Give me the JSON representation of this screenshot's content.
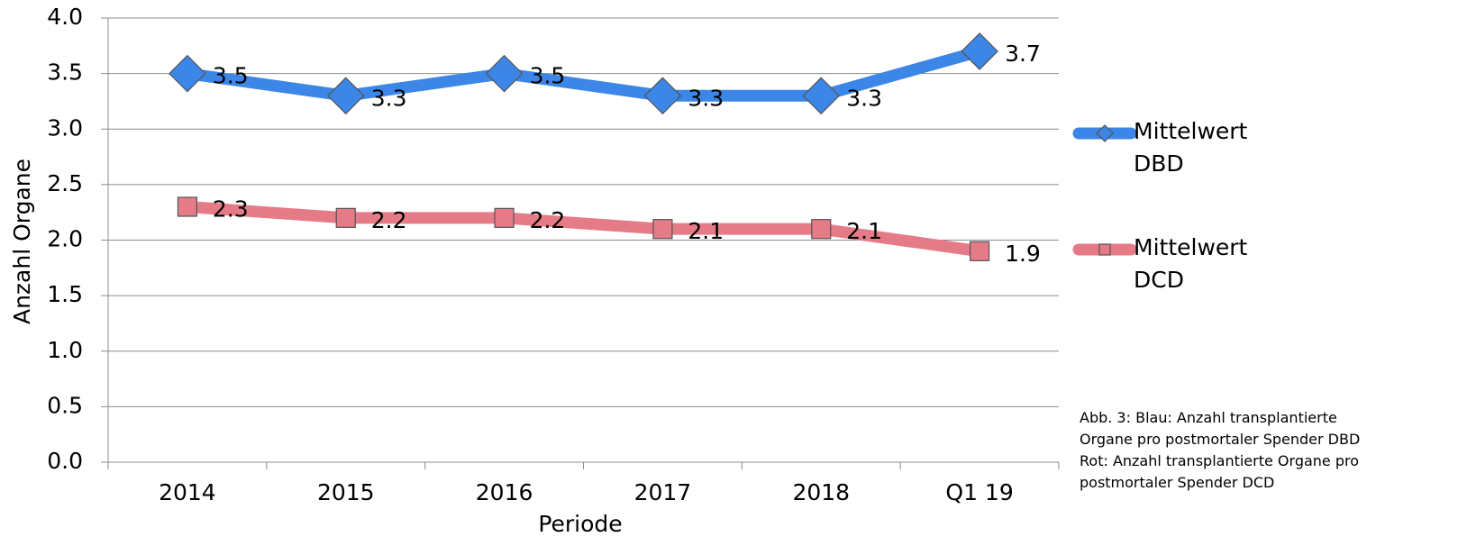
{
  "chart_data": {
    "type": "line",
    "categories": [
      "2014",
      "2015",
      "2016",
      "2017",
      "2018",
      "Q1 19"
    ],
    "series": [
      {
        "name": "Mittelwert DBD",
        "color": "#3b86e6",
        "marker": "diamond",
        "values": [
          3.5,
          3.3,
          3.5,
          3.3,
          3.3,
          3.7
        ]
      },
      {
        "name": "Mittelwert DCD",
        "color": "#e57b86",
        "marker": "square",
        "values": [
          2.3,
          2.2,
          2.2,
          2.1,
          2.1,
          1.9
        ]
      }
    ],
    "ylim": [
      0,
      4
    ],
    "yticks": [
      {
        "value": 0,
        "label": "0.0"
      },
      0.5,
      {
        "value": 1,
        "label": "1.0"
      },
      1.5,
      {
        "value": 2,
        "label": "2.0"
      },
      2.5,
      {
        "value": 3,
        "label": "3.0"
      },
      3.5,
      {
        "value": 4,
        "label": "4.0"
      }
    ],
    "grid": true,
    "xlabel": "Periode",
    "ylabel": "Anzahl Organe",
    "legend": "right",
    "annotation": "Abb. 3: Blau: Anzahl transplantierte Organe pro postmortaler Spender DBD Rot: Anzahl transplantierte Organe pro postmortaler Spender DCD"
  }
}
